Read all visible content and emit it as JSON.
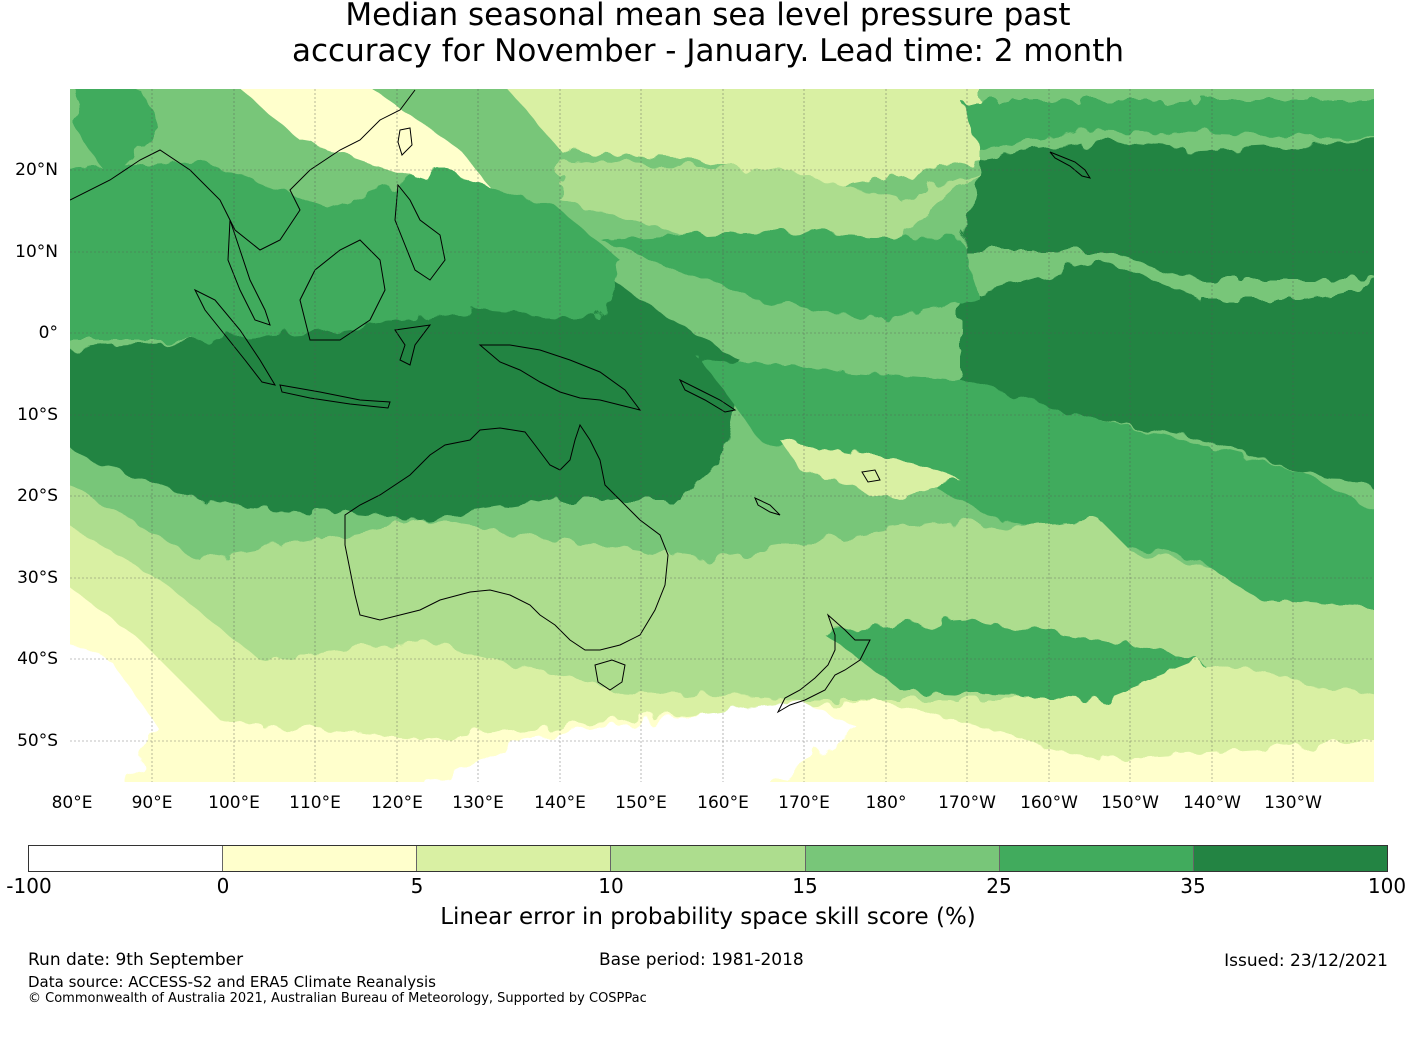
{
  "title_line1": "Median seasonal mean sea level pressure past",
  "title_line2": "accuracy for November - January. Lead time: 2 month",
  "lat_labels": [
    "20°N",
    "10°N",
    "0°",
    "10°S",
    "20°S",
    "30°S",
    "40°S",
    "50°S"
  ],
  "lon_labels": [
    "80°E",
    "90°E",
    "100°E",
    "110°E",
    "120°E",
    "130°E",
    "140°E",
    "150°E",
    "160°E",
    "170°E",
    "180°",
    "170°W",
    "160°W",
    "150°W",
    "140°W",
    "130°W"
  ],
  "colorbar": {
    "colors": [
      "#ffffff",
      "#ffffcc",
      "#d9f0a3",
      "#addd8e",
      "#78c679",
      "#41ab5d",
      "#238443"
    ],
    "ticks": [
      "-100",
      "0",
      "5",
      "10",
      "15",
      "25",
      "35",
      "100"
    ],
    "label": "Linear error in probability space skill score (%)"
  },
  "footer": {
    "run_date": "Run date: 9th September",
    "base_period": "Base period: 1981-2018",
    "issued": "Issued: 23/12/2021",
    "data_source": "Data source: ACCESS-S2 and ERA5 Climate Reanalysis",
    "copyright": "© Commonwealth of Australia 2021, Australian Bureau of Meteorology, Supported by COSPPac"
  }
}
